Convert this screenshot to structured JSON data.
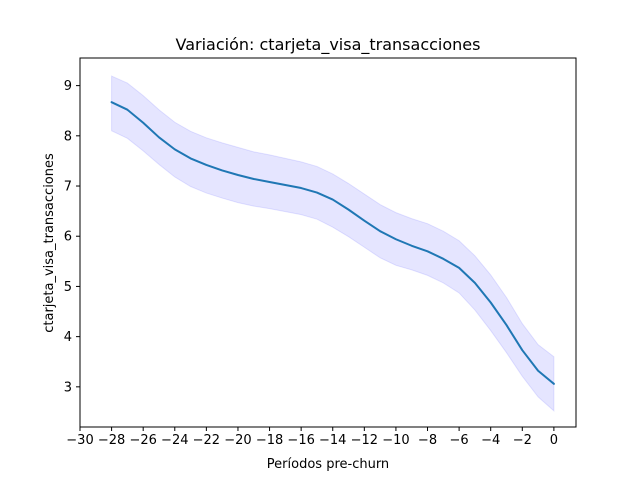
{
  "chart_data": {
    "type": "line",
    "title": "Variación: ctarjeta_visa_transacciones",
    "xlabel": "Períodos pre-churn",
    "ylabel": "ctarjeta_visa_transacciones",
    "xlim": [
      -30,
      1.4
    ],
    "ylim": [
      2.2,
      9.55
    ],
    "x_ticks": [
      -30,
      -28,
      -26,
      -24,
      -22,
      -20,
      -18,
      -16,
      -14,
      -12,
      -10,
      -8,
      -6,
      -4,
      -2,
      0
    ],
    "x_tick_labels": [
      "−30",
      "−28",
      "−26",
      "−24",
      "−22",
      "−20",
      "−18",
      "−16",
      "−14",
      "−12",
      "−10",
      "−8",
      "−6",
      "−4",
      "−2",
      "0"
    ],
    "y_ticks": [
      3,
      4,
      5,
      6,
      7,
      8,
      9
    ],
    "y_tick_labels": [
      "3",
      "4",
      "5",
      "6",
      "7",
      "8",
      "9"
    ],
    "grid": false,
    "legend": "none",
    "colors": {
      "line": "#1f77b4",
      "band": "#0000ff"
    },
    "series": [
      {
        "x": [
          -28,
          -27,
          -26,
          -25,
          -24,
          -23,
          -22,
          -21,
          -20,
          -19,
          -18,
          -17,
          -16,
          -15,
          -14,
          -13,
          -12,
          -11,
          -10,
          -9,
          -8,
          -7,
          -6,
          -5,
          -4,
          -3,
          -2,
          -1,
          0
        ],
        "y": [
          8.67,
          8.52,
          8.26,
          7.97,
          7.73,
          7.55,
          7.42,
          7.31,
          7.22,
          7.14,
          7.08,
          7.02,
          6.96,
          6.87,
          6.73,
          6.53,
          6.31,
          6.1,
          5.94,
          5.81,
          5.7,
          5.55,
          5.37,
          5.07,
          4.68,
          4.23,
          3.73,
          3.32,
          3.06
        ],
        "lower": [
          8.1,
          7.95,
          7.7,
          7.43,
          7.18,
          6.99,
          6.86,
          6.76,
          6.67,
          6.6,
          6.55,
          6.49,
          6.43,
          6.34,
          6.18,
          5.99,
          5.78,
          5.57,
          5.42,
          5.33,
          5.22,
          5.07,
          4.87,
          4.53,
          4.12,
          3.68,
          3.21,
          2.8,
          2.52
        ],
        "upper": [
          9.19,
          9.05,
          8.8,
          8.52,
          8.27,
          8.09,
          7.96,
          7.86,
          7.77,
          7.68,
          7.62,
          7.55,
          7.48,
          7.39,
          7.24,
          7.05,
          6.84,
          6.63,
          6.47,
          6.35,
          6.25,
          6.1,
          5.91,
          5.61,
          5.23,
          4.78,
          4.26,
          3.84,
          3.6
        ]
      }
    ]
  }
}
